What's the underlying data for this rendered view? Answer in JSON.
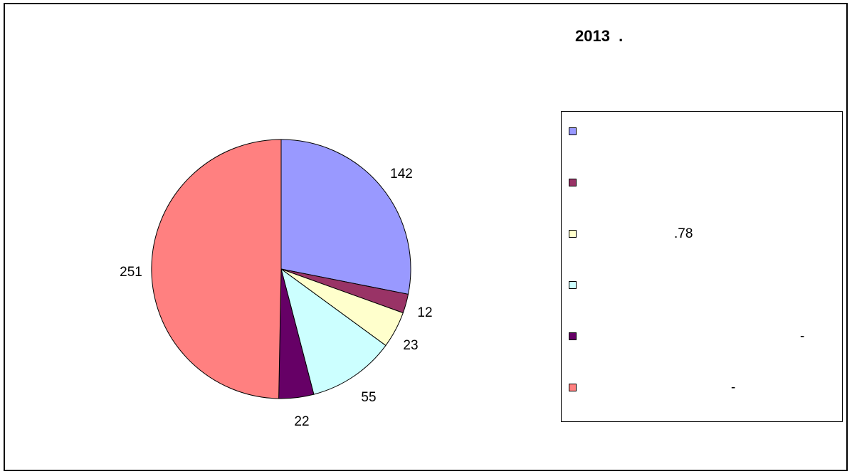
{
  "chart_data": {
    "type": "pie",
    "title": "2013  .",
    "values": [
      142,
      12,
      23,
      55,
      22,
      251
    ],
    "data_labels": [
      "142",
      "12",
      "23",
      "55",
      "22",
      "251"
    ],
    "colors": [
      "#9999FF",
      "#993366",
      "#FFFFCC",
      "#CCFFFF",
      "#660066",
      "#FF8080"
    ],
    "legend_labels": [
      "",
      "",
      ".78",
      "",
      "-",
      "-"
    ],
    "legend_placement": "right"
  }
}
